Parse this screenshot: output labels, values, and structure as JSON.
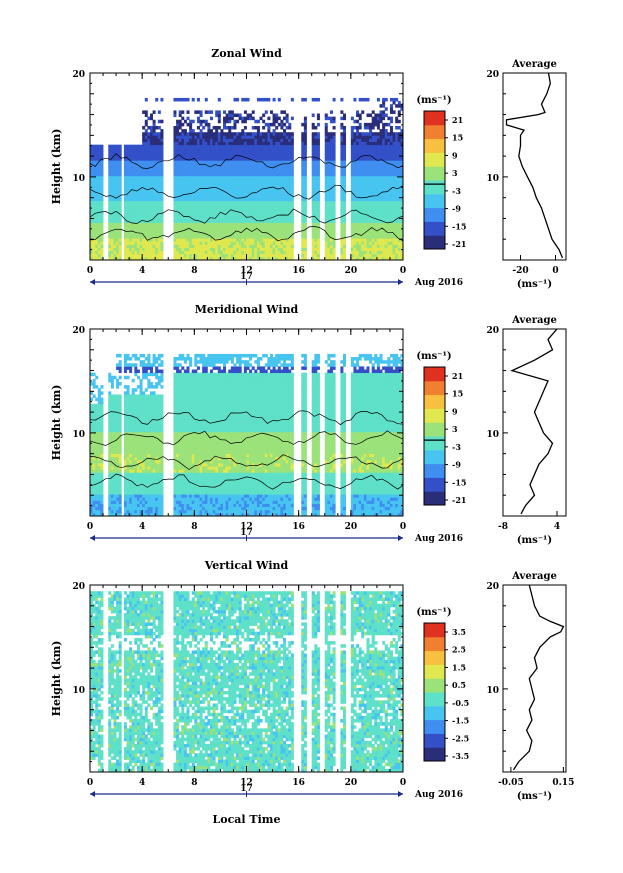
{
  "shared": {
    "time_ticks": [
      "0",
      "4",
      "8",
      "12",
      "16",
      "20",
      "0"
    ],
    "height_ticks": [
      "10",
      "20"
    ],
    "date_day": "17",
    "date_label": "Aug 2016",
    "ylabel": "Height (km)",
    "avg_title": "Average",
    "unit": "(ms⁻¹)"
  },
  "xlabel": "Local Time",
  "chart_data": [
    {
      "type": "heatmap",
      "title": "Zonal Wind",
      "xlabel": "",
      "ylabel": "Height (km)",
      "xlim": [
        0,
        24
      ],
      "ylim": [
        2,
        20
      ],
      "colorbar_ticks": [
        "21",
        "15",
        "9",
        "3",
        "-3",
        "-9",
        "-15",
        "-21"
      ],
      "colorbar_range": [
        -24,
        24
      ],
      "colors": [
        "#2a2e7a",
        "#3350c8",
        "#3f8ff0",
        "#47c5f0",
        "#5fe0c8",
        "#9be27a",
        "#e0e850",
        "#f8c040",
        "#f08030",
        "#e03020"
      ],
      "profile": {
        "heights": [
          2.2,
          3,
          4,
          5,
          6,
          7,
          8,
          9,
          10,
          11,
          12,
          13,
          14,
          14.5,
          15,
          15.5,
          16,
          16.2,
          17,
          18,
          19,
          20
        ],
        "values": [
          4,
          2,
          -2,
          -4,
          -6,
          -8,
          -11,
          -13,
          -16,
          -19,
          -21,
          -20,
          -20,
          -18,
          -28,
          -28,
          -10,
          -6,
          -8,
          -5,
          -3,
          -4
        ]
      },
      "profile_xlim": [
        -30,
        6
      ],
      "profile_xticks": [
        "-20",
        "0"
      ],
      "profile_ylim": [
        2,
        20
      ],
      "profile_yticks": [
        "10",
        "20"
      ]
    },
    {
      "type": "heatmap",
      "title": "Meridional Wind",
      "xlabel": "",
      "ylabel": "Height (km)",
      "xlim": [
        0,
        24
      ],
      "ylim": [
        2,
        20
      ],
      "colorbar_ticks": [
        "21",
        "15",
        "9",
        "3",
        "-3",
        "-9",
        "-15",
        "-21"
      ],
      "colorbar_range": [
        -24,
        24
      ],
      "colors": [
        "#2a2e7a",
        "#3350c8",
        "#3f8ff0",
        "#47c5f0",
        "#5fe0c8",
        "#9be27a",
        "#e0e850",
        "#f8c040",
        "#f08030",
        "#e03020"
      ],
      "profile": {
        "heights": [
          2.2,
          3,
          4,
          5,
          6,
          7,
          8,
          9,
          10,
          11,
          12,
          13,
          14,
          15,
          16,
          17,
          18,
          19,
          20
        ],
        "values": [
          -4,
          -3,
          -1,
          -2,
          -1,
          0,
          2,
          3,
          1,
          0,
          -1,
          0,
          1,
          2,
          -6,
          -1,
          3,
          2,
          4
        ]
      },
      "profile_xlim": [
        -8,
        6
      ],
      "profile_xticks": [
        "-8",
        "4"
      ],
      "profile_ylim": [
        2,
        20
      ],
      "profile_yticks": [
        "10",
        "20"
      ]
    },
    {
      "type": "heatmap",
      "title": "Vertical Wind",
      "xlabel": "Local Time",
      "ylabel": "Height (km)",
      "xlim": [
        0,
        24
      ],
      "ylim": [
        2,
        20
      ],
      "colorbar_ticks": [
        "3.5",
        "2.5",
        "1.5",
        "0.5",
        "-0.5",
        "-1.5",
        "-2.5",
        "-3.5"
      ],
      "colorbar_range": [
        -4,
        4
      ],
      "colors": [
        "#2a2e7a",
        "#3350c8",
        "#3f8ff0",
        "#47c5f0",
        "#5fe0c8",
        "#9be27a",
        "#e0e850",
        "#f8c040",
        "#f08030",
        "#e03020"
      ],
      "profile": {
        "heights": [
          2.2,
          3,
          4,
          5,
          6,
          7,
          8,
          9,
          10,
          11,
          12,
          13,
          14,
          15,
          15.5,
          16,
          16.5,
          17,
          18,
          19,
          20
        ],
        "values": [
          -0.04,
          -0.02,
          0.02,
          0.03,
          0.01,
          0.03,
          0.02,
          0.04,
          0.03,
          0.02,
          0.05,
          0.04,
          0.06,
          0.1,
          0.14,
          0.15,
          0.1,
          0.06,
          0.04,
          0.03,
          0.02
        ]
      },
      "profile_xlim": [
        -0.08,
        0.16
      ],
      "profile_xticks": [
        "-0.05",
        "0.15"
      ],
      "profile_ylim": [
        2,
        20
      ],
      "profile_yticks": [
        "10",
        "20"
      ]
    }
  ]
}
